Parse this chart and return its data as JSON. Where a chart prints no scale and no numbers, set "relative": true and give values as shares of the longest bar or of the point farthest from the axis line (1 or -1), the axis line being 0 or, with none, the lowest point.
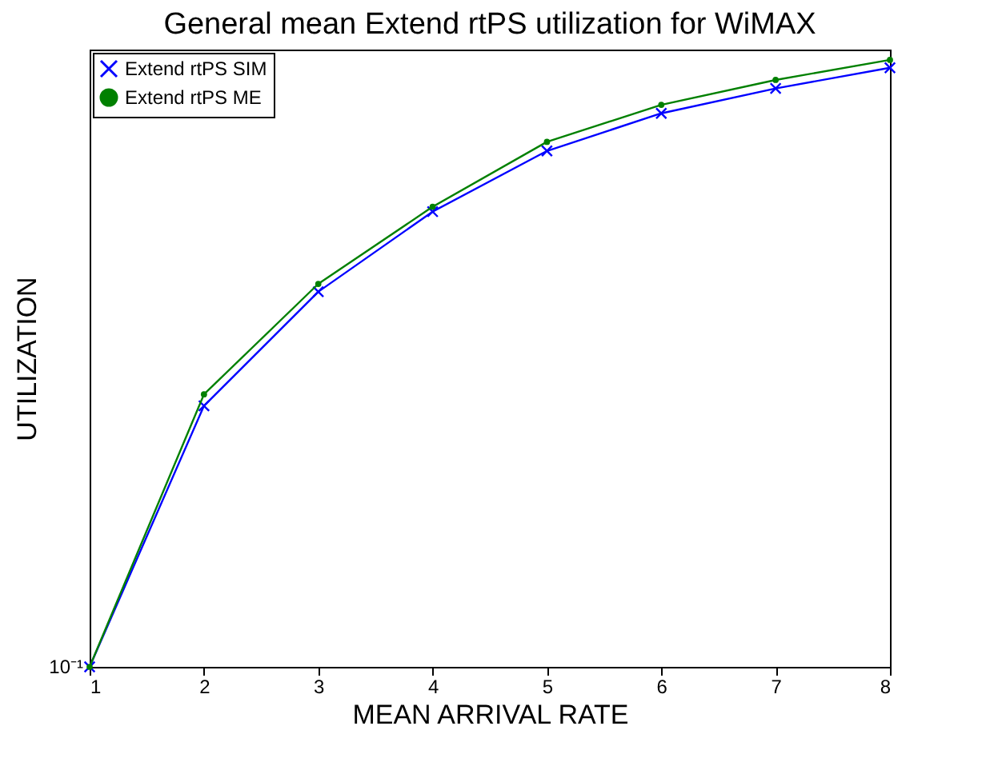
{
  "chart_data": {
    "type": "line",
    "title": "General mean Extend rtPS utilization for WiMAX",
    "xlabel": "MEAN ARRIVAL RATE",
    "ylabel": "UTILIZATION",
    "x": [
      1,
      2,
      3,
      4,
      5,
      6,
      7,
      8
    ],
    "series": [
      {
        "name": "Extend rtPS SIM",
        "color": "#0000ff",
        "marker": "cross",
        "values": [
          0,
          0.43,
          0.618,
          0.75,
          0.85,
          0.912,
          0.953,
          0.987
        ]
      },
      {
        "name": "Extend rtPS ME",
        "color": "#008000",
        "marker": "circle",
        "values": [
          0,
          0.449,
          0.631,
          0.758,
          0.865,
          0.926,
          0.967,
          1
        ]
      }
    ],
    "relative": true,
    "annotations": [
      "10⁻¹"
    ],
    "xlim": [
      1,
      8
    ],
    "xticks": [
      1,
      2,
      3,
      4,
      5,
      6,
      7,
      8
    ],
    "grid": false,
    "legend": "top left",
    "line_style": "solid"
  }
}
